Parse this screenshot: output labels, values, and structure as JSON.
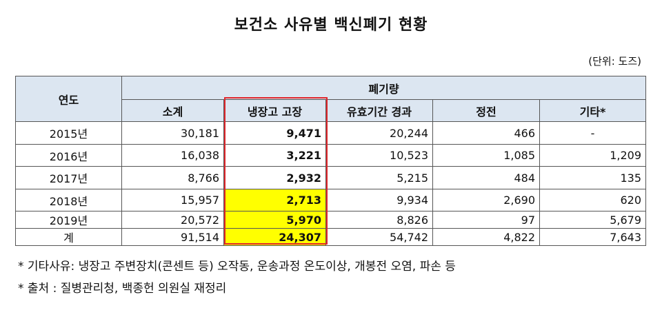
{
  "title": "보건소 사유별 백신폐기 현황",
  "unit": "(단위: 도즈)",
  "table": {
    "year_header": "연도",
    "group_header": "폐기량",
    "columns": [
      "소계",
      "냉장고 고장",
      "유효기간 경과",
      "정전",
      "기타*"
    ],
    "rows": [
      {
        "year": "2015년",
        "subtotal": "30,181",
        "fridge": "9,471",
        "expired": "20,244",
        "outage": "466",
        "other": "-"
      },
      {
        "year": "2016년",
        "subtotal": "16,038",
        "fridge": "3,221",
        "expired": "10,523",
        "outage": "1,085",
        "other": "1,209"
      },
      {
        "year": "2017년",
        "subtotal": "8,766",
        "fridge": "2,932",
        "expired": "5,215",
        "outage": "484",
        "other": "135"
      },
      {
        "year": "2018년",
        "subtotal": "15,957",
        "fridge": "2,713",
        "expired": "9,934",
        "outage": "2,690",
        "other": "620"
      },
      {
        "year": "2019년",
        "subtotal": "20,572",
        "fridge": "5,970",
        "expired": "8,826",
        "outage": "97",
        "other": "5,679"
      },
      {
        "year": "계",
        "subtotal": "91,514",
        "fridge": "24,307",
        "expired": "54,742",
        "outage": "4,822",
        "other": "7,643"
      }
    ]
  },
  "highlight": {
    "box_color": "#e0262b",
    "fill_color": "#ffff00",
    "header_color": "#dce6f1"
  },
  "notes": [
    "* 기타사유: 냉장고 주변장치(콘센트 등) 오작동, 운송과정 온도이상, 개봉전 오염, 파손 등",
    "* 출처 : 질병관리청, 백종헌 의원실 재정리"
  ]
}
